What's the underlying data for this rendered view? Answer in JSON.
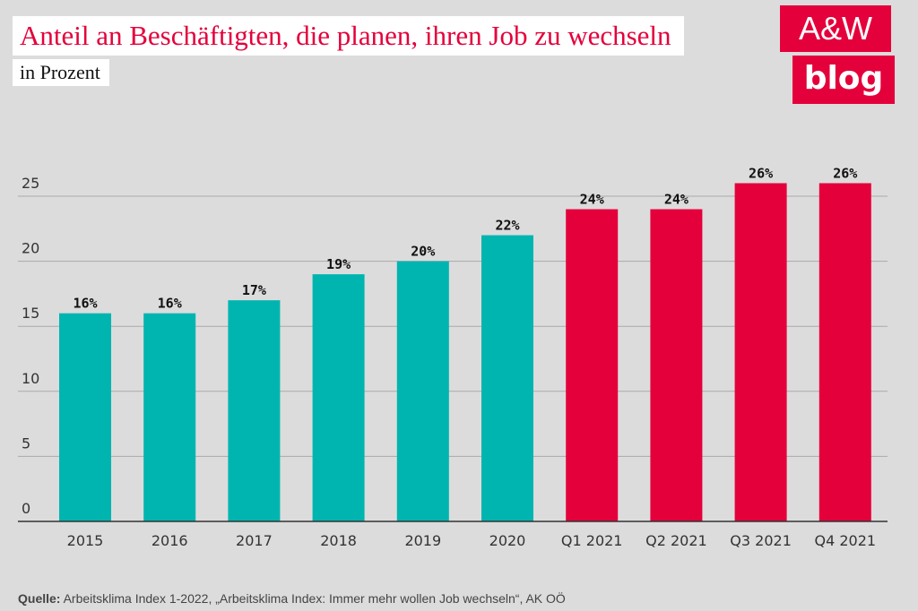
{
  "header": {
    "title": "Anteil an Beschäftigten, die planen, ihren Job zu wechseln",
    "subtitle": "in Prozent"
  },
  "logo": {
    "line1": "A&W",
    "line2": "blog"
  },
  "source": {
    "label": "Quelle:",
    "text": " Arbeitsklima Index 1-2022, „Arbeitsklima Index: Immer mehr wollen Job wechseln“, AK OÖ"
  },
  "colors": {
    "teal": "#00b5b0",
    "red": "#e4003b",
    "grid": "#aaaaaa",
    "axis": "#333333"
  },
  "chart_data": {
    "type": "bar",
    "title": "Anteil an Beschäftigten, die planen, ihren Job zu wechseln",
    "ylabel": "in Prozent",
    "xlabel": "",
    "ylim": [
      0,
      25
    ],
    "yticks": [
      0,
      5,
      10,
      15,
      20,
      25
    ],
    "categories": [
      "2015",
      "2016",
      "2017",
      "2018",
      "2019",
      "2020",
      "Q1 2021",
      "Q2 2021",
      "Q3 2021",
      "Q4 2021"
    ],
    "values": [
      16,
      16,
      17,
      19,
      20,
      22,
      24,
      24,
      26,
      26
    ],
    "labels": [
      "16%",
      "16%",
      "17%",
      "19%",
      "20%",
      "22%",
      "24%",
      "24%",
      "26%",
      "26%"
    ],
    "bar_colors": [
      "teal",
      "teal",
      "teal",
      "teal",
      "teal",
      "teal",
      "red",
      "red",
      "red",
      "red"
    ]
  }
}
